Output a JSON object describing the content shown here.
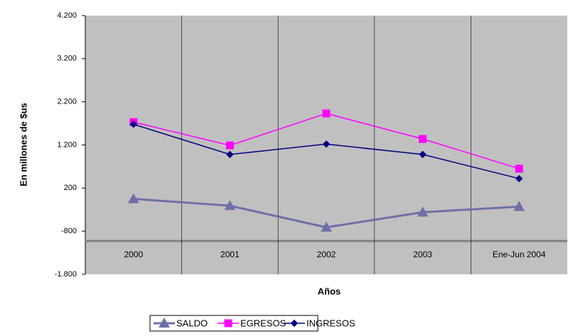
{
  "chart_data": {
    "type": "line",
    "categories": [
      "2000",
      "2001",
      "2002",
      "2003",
      "Ene-Jun 2004"
    ],
    "series": [
      {
        "name": "SALDO",
        "color": "#6f6fa8",
        "marker": "triangle",
        "values": [
          -50,
          -210,
          -710,
          -360,
          -230
        ]
      },
      {
        "name": "EGRESOS",
        "color": "#ff00ff",
        "marker": "square",
        "values": [
          1730,
          1190,
          1930,
          1340,
          650
        ]
      },
      {
        "name": "INGRESOS",
        "color": "#000080",
        "marker": "diamond",
        "values": [
          1680,
          980,
          1220,
          980,
          420
        ]
      }
    ],
    "ylim": [
      -1800,
      4200
    ],
    "yticks": [
      {
        "value": -1800,
        "label": "-1.800"
      },
      -800,
      200,
      {
        "value": 1200,
        "label": "1.200"
      },
      {
        "value": 2200,
        "label": "2.200"
      },
      {
        "value": 3200,
        "label": "3.200"
      },
      {
        "value": 4200,
        "label": "4.200"
      }
    ],
    "xlabel": "Años",
    "ylabel": "En millones de $us",
    "legend": "bottom"
  }
}
